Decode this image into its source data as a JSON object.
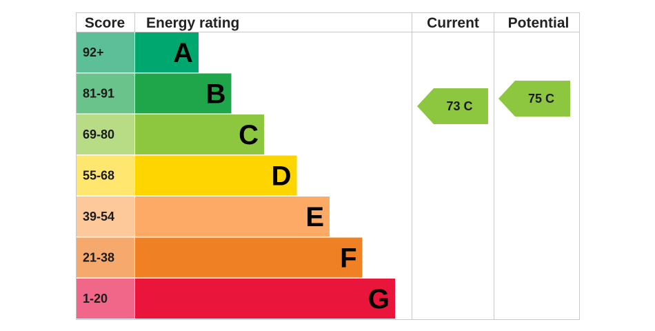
{
  "headers": {
    "score": "Score",
    "energy_rating": "Energy rating",
    "current": "Current",
    "potential": "Potential"
  },
  "chart_data": {
    "type": "bar",
    "bands": [
      {
        "letter": "A",
        "range": "92+",
        "min": 92,
        "max": 100,
        "color": "#00a76f",
        "score_bg": "#5dbf98"
      },
      {
        "letter": "B",
        "range": "81-91",
        "min": 81,
        "max": 91,
        "color": "#1fa64b",
        "score_bg": "#6ac38a"
      },
      {
        "letter": "C",
        "range": "69-80",
        "min": 69,
        "max": 80,
        "color": "#8dc63f",
        "score_bg": "#b7dc85"
      },
      {
        "letter": "D",
        "range": "55-68",
        "min": 55,
        "max": 68,
        "color": "#ffd500",
        "score_bg": "#ffe66e"
      },
      {
        "letter": "E",
        "range": "39-54",
        "min": 39,
        "max": 54,
        "color": "#fcaa65",
        "score_bg": "#fdc99a"
      },
      {
        "letter": "F",
        "range": "21-38",
        "min": 21,
        "max": 38,
        "color": "#ef8023",
        "score_bg": "#f5a96c"
      },
      {
        "letter": "G",
        "range": "1-20",
        "min": 1,
        "max": 20,
        "color": "#e9153b",
        "score_bg": "#f0678a"
      }
    ],
    "current": {
      "value": 73,
      "band": "C",
      "label": "73 C",
      "color": "#8dc63f"
    },
    "potential": {
      "value": 75,
      "band": "C",
      "label": "75 C",
      "color": "#8dc63f"
    }
  }
}
